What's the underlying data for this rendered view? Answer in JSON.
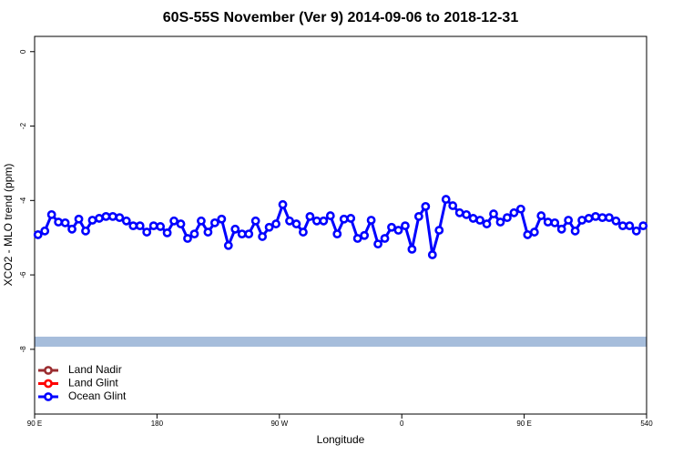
{
  "chart_data": {
    "type": "line",
    "title": "60S-55S November (Ver 9)   2014-09-06 to 2018-12-31",
    "x_label": "Longitude",
    "y_label": "XCO2 - MLO trend (ppm)",
    "xlim": [
      90,
      540
    ],
    "ylim": [
      -9.74,
      0.41
    ],
    "xticks": [
      {
        "value": 90,
        "label": "90 E"
      },
      180,
      {
        "value": 270,
        "label": "90 W"
      },
      {
        "value": 360,
        "label": "0"
      },
      {
        "value": 450,
        "label": "90 E"
      },
      540
    ],
    "yticks": [
      0,
      -2,
      -4,
      -6,
      -8
    ],
    "legend": "bottomleft",
    "band": [
      -7.93,
      -7.66
    ],
    "band_color": "#a6bddb",
    "series": [
      {
        "name": "Land Nadir",
        "color": "#9b2d30",
        "x": [],
        "values": []
      },
      {
        "name": "Land Glint",
        "color": "#ff0000",
        "x": [],
        "values": []
      },
      {
        "name": "Ocean Glint",
        "color": "#0000ff",
        "x": [
          92.5,
          97.5,
          102.5,
          107.5,
          112.5,
          117.5,
          122.5,
          127.5,
          132.5,
          137.5,
          142.5,
          147.5,
          152.5,
          157.5,
          162.5,
          167.5,
          172.5,
          177.5,
          182.5,
          187.5,
          192.5,
          197.5,
          202.5,
          207.5,
          212.5,
          217.5,
          222.5,
          227.5,
          232.5,
          237.5,
          242.5,
          247.5,
          252.5,
          257.5,
          262.5,
          267.5,
          272.5,
          277.5,
          282.5,
          287.5,
          292.5,
          297.5,
          302.5,
          307.5,
          312.5,
          317.5,
          322.5,
          327.5,
          332.5,
          337.5,
          342.5,
          347.5,
          352.5,
          357.5,
          362.5,
          367.5,
          372.5,
          377.5,
          382.5,
          387.5,
          392.5,
          397.5,
          402.5,
          407.5,
          412.5,
          417.5,
          422.5,
          427.5,
          432.5,
          437.5,
          442.5,
          447.5,
          452.5,
          457.5,
          462.5,
          467.5,
          472.5,
          477.5,
          482.5,
          487.5,
          492.5,
          497.5,
          502.5,
          507.5,
          512.5,
          517.5,
          522.5,
          527.5,
          532.5,
          537.5
        ],
        "values": [
          -4.92,
          -4.82,
          -4.38,
          -4.58,
          -4.6,
          -4.77,
          -4.5,
          -4.82,
          -4.53,
          -4.48,
          -4.43,
          -4.43,
          -4.46,
          -4.55,
          -4.68,
          -4.68,
          -4.85,
          -4.68,
          -4.7,
          -4.87,
          -4.55,
          -4.63,
          -5.02,
          -4.9,
          -4.55,
          -4.85,
          -4.6,
          -4.5,
          -5.21,
          -4.77,
          -4.9,
          -4.9,
          -4.55,
          -4.97,
          -4.72,
          -4.63,
          -4.11,
          -4.55,
          -4.63,
          -4.85,
          -4.43,
          -4.55,
          -4.55,
          -4.41,
          -4.9,
          -4.5,
          -4.48,
          -5.02,
          -4.94,
          -4.53,
          -5.17,
          -5.02,
          -4.72,
          -4.8,
          -4.68,
          -5.31,
          -4.43,
          -4.16,
          -5.46,
          -4.8,
          -3.97,
          -4.14,
          -4.33,
          -4.38,
          -4.48,
          -4.53,
          -4.63,
          -4.36,
          -4.58,
          -4.46,
          -4.33,
          -4.23,
          -4.92,
          -4.85,
          -4.41,
          -4.58,
          -4.6,
          -4.77,
          -4.53,
          -4.82,
          -4.53,
          -4.48,
          -4.43,
          -4.46,
          -4.46,
          -4.55,
          -4.68,
          -4.68,
          -4.82,
          -4.68
        ]
      }
    ]
  }
}
